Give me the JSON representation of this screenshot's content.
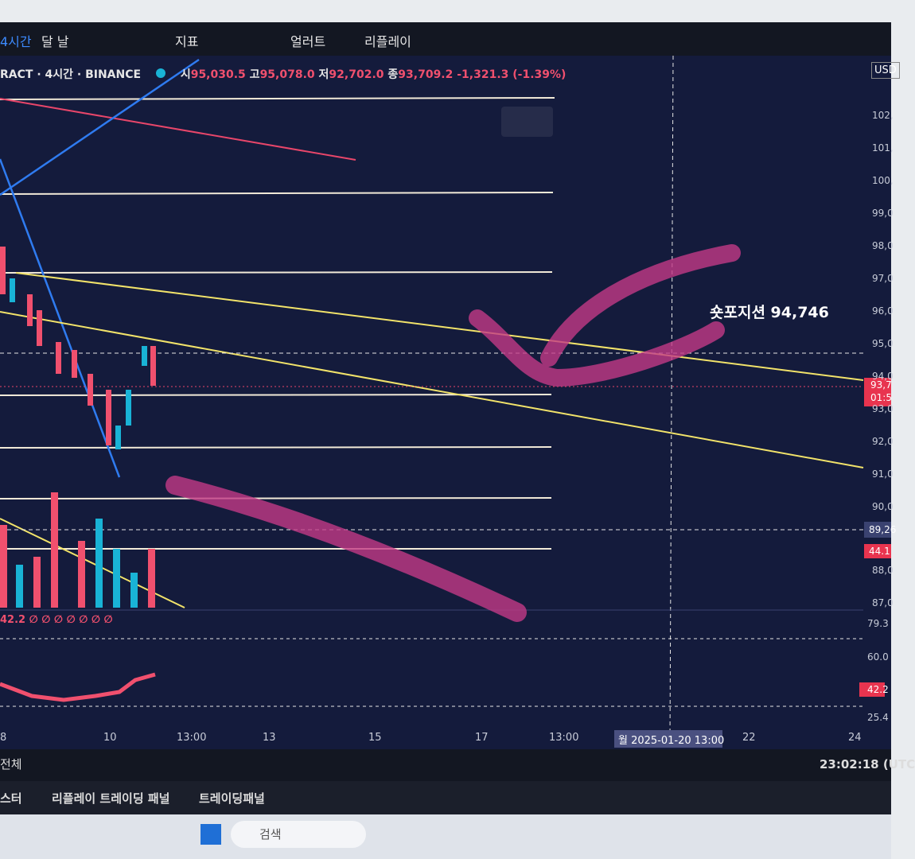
{
  "toolbar": {
    "items": [
      "4시간",
      "달 날",
      "지표",
      "얼러트",
      "리플레이"
    ]
  },
  "legend": {
    "symbol": "RACT · 4시간 · BINANCE",
    "open_label": "시",
    "open": "95,030.5",
    "high_label": "고",
    "high": "95,078.0",
    "low_label": "저",
    "low": "92,702.0",
    "close_label": "종",
    "close": "93,709.2",
    "change": "-1,321.3 (-1.39%)"
  },
  "price_axis": {
    "currency": "USD",
    "labels": [
      "102,",
      "101,",
      "100,",
      "99,0",
      "98,0",
      "97,0",
      "96,0",
      "95,0",
      "94,0",
      "93,0",
      "92,0",
      "91,0",
      "90,0",
      "88,0",
      "87,0"
    ],
    "current_price": "93,7",
    "countdown": "01:5",
    "crosshair_price": "89,26",
    "volume_tag": "44.1"
  },
  "annotation": "숏포지션 94,746",
  "rsi": {
    "legend": "42.2 ∅ ∅ ∅ ∅ ∅ ∅ ∅",
    "labels": [
      "79.3",
      "60.0",
      "42.2",
      "25.4"
    ]
  },
  "time_axis": [
    "8",
    "10",
    "13:00",
    "13",
    "15",
    "17",
    "13:00",
    "22",
    "24"
  ],
  "crosshair_time": "월 2025-01-20   13:00",
  "status": {
    "all": "전체",
    "clock": "23:02:18 (UTC"
  },
  "bottom_tabs": [
    "스터",
    "리플레이 트레이딩 패널",
    "트레이딩패널"
  ],
  "taskbar": {
    "search": "검색"
  }
}
